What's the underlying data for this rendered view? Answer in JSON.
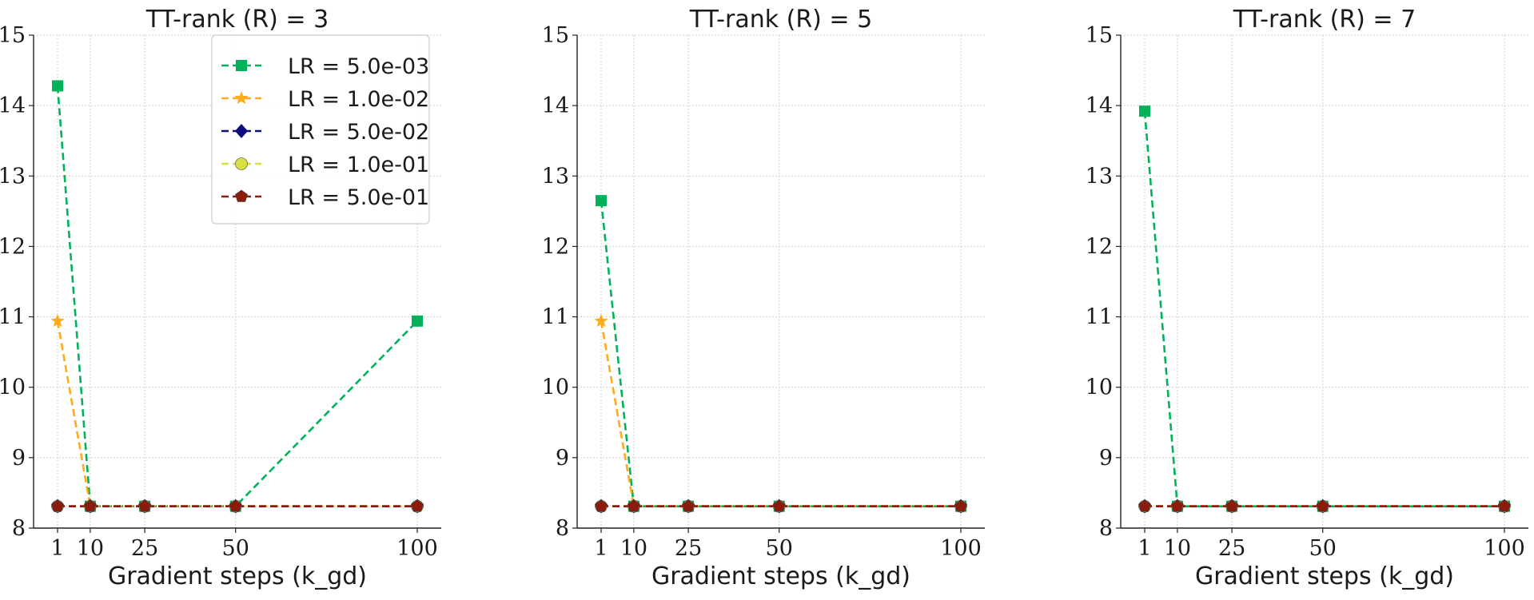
{
  "figure": {
    "panels": [
      {
        "title": "TT-rank (R) = 3",
        "xlabel": "Gradient steps (k_gd)"
      },
      {
        "title": "TT-rank (R) = 5",
        "xlabel": "Gradient steps (k_gd)"
      },
      {
        "title": "TT-rank (R) = 7",
        "xlabel": "Gradient steps (k_gd)"
      }
    ]
  },
  "chart_data": [
    {
      "type": "line",
      "title": "TT-rank (R) = 3",
      "xlabel": "Gradient steps (k_gd)",
      "ylabel": "",
      "x": [
        1,
        10,
        25,
        50,
        100
      ],
      "xticks": [
        1,
        10,
        25,
        50,
        100
      ],
      "ylim": [
        8,
        15
      ],
      "yticks": [
        8,
        9,
        10,
        11,
        12,
        13,
        14,
        15
      ],
      "grid": true,
      "legend": "top-right",
      "series": [
        {
          "name": "LR = 5.0e-03",
          "color": "#00b35a",
          "marker": "square",
          "values": [
            14.28,
            8.31,
            8.31,
            8.31,
            10.94
          ]
        },
        {
          "name": "LR = 1.0e-02",
          "color": "#ffab1a",
          "marker": "star",
          "values": [
            10.94,
            8.31,
            8.31,
            8.31,
            8.31
          ]
        },
        {
          "name": "LR = 5.0e-02",
          "color": "#0d0d80",
          "marker": "diamond",
          "values": [
            8.31,
            8.31,
            8.31,
            8.31,
            8.31
          ]
        },
        {
          "name": "LR = 1.0e-01",
          "color": "#d9e042",
          "marker": "circle",
          "values": [
            8.31,
            8.31,
            8.31,
            8.31,
            8.31
          ]
        },
        {
          "name": "LR = 5.0e-01",
          "color": "#8c1a0d",
          "marker": "pentagon",
          "values": [
            8.31,
            8.31,
            8.31,
            8.31,
            8.31
          ]
        }
      ]
    },
    {
      "type": "line",
      "title": "TT-rank (R) = 5",
      "xlabel": "Gradient steps (k_gd)",
      "ylabel": "",
      "x": [
        1,
        10,
        25,
        50,
        100
      ],
      "xticks": [
        1,
        10,
        25,
        50,
        100
      ],
      "ylim": [
        8,
        15
      ],
      "yticks": [
        8,
        9,
        10,
        11,
        12,
        13,
        14,
        15
      ],
      "grid": true,
      "series": [
        {
          "name": "LR = 5.0e-03",
          "color": "#00b35a",
          "marker": "square",
          "values": [
            12.65,
            8.31,
            8.31,
            8.31,
            8.31
          ]
        },
        {
          "name": "LR = 1.0e-02",
          "color": "#ffab1a",
          "marker": "star",
          "values": [
            10.94,
            8.31,
            8.31,
            8.31,
            8.31
          ]
        },
        {
          "name": "LR = 5.0e-02",
          "color": "#0d0d80",
          "marker": "diamond",
          "values": [
            8.31,
            8.31,
            8.31,
            8.31,
            8.31
          ]
        },
        {
          "name": "LR = 1.0e-01",
          "color": "#d9e042",
          "marker": "circle",
          "values": [
            8.31,
            8.31,
            8.31,
            8.31,
            8.31
          ]
        },
        {
          "name": "LR = 5.0e-01",
          "color": "#8c1a0d",
          "marker": "pentagon",
          "values": [
            8.31,
            8.31,
            8.31,
            8.31,
            8.31
          ]
        }
      ]
    },
    {
      "type": "line",
      "title": "TT-rank (R) = 7",
      "xlabel": "Gradient steps (k_gd)",
      "ylabel": "",
      "x": [
        1,
        10,
        25,
        50,
        100
      ],
      "xticks": [
        1,
        10,
        25,
        50,
        100
      ],
      "ylim": [
        8,
        15
      ],
      "yticks": [
        8,
        9,
        10,
        11,
        12,
        13,
        14,
        15
      ],
      "grid": true,
      "series": [
        {
          "name": "LR = 5.0e-03",
          "color": "#00b35a",
          "marker": "square",
          "values": [
            13.92,
            8.31,
            8.31,
            8.31,
            8.31
          ]
        },
        {
          "name": "LR = 1.0e-02",
          "color": "#ffab1a",
          "marker": "star",
          "values": [
            8.31,
            8.31,
            8.31,
            8.31,
            8.31
          ]
        },
        {
          "name": "LR = 5.0e-02",
          "color": "#0d0d80",
          "marker": "diamond",
          "values": [
            8.31,
            8.31,
            8.31,
            8.31,
            8.31
          ]
        },
        {
          "name": "LR = 1.0e-01",
          "color": "#d9e042",
          "marker": "circle",
          "values": [
            8.31,
            8.31,
            8.31,
            8.31,
            8.31
          ]
        },
        {
          "name": "LR = 5.0e-01",
          "color": "#8c1a0d",
          "marker": "pentagon",
          "values": [
            8.31,
            8.31,
            8.31,
            8.31,
            8.31
          ]
        }
      ]
    }
  ]
}
